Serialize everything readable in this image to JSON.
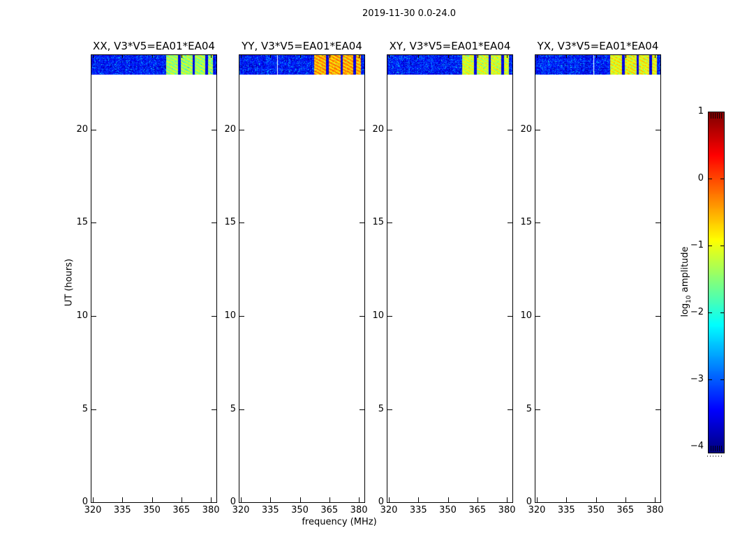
{
  "figure": {
    "title": "2019-11-30 0.0-24.0",
    "xlabel": "frequency (MHz)",
    "ylabel": "UT (hours)"
  },
  "chart_data": {
    "type": "heatmap",
    "title": "2019-11-30 0.0-24.0",
    "xlabel": "frequency (MHz)",
    "ylabel": "UT (hours)",
    "xlim": [
      319.3,
      382.8
    ],
    "ylim": [
      0,
      24
    ],
    "x_ticks": [
      320,
      335,
      350,
      365,
      380
    ],
    "x_tick_labels": [
      "320",
      "335",
      "350",
      "365",
      "380"
    ],
    "y_ticks": [
      0,
      5,
      10,
      15,
      20
    ],
    "y_tick_labels": [
      "0",
      "5",
      "10",
      "15",
      "20"
    ],
    "grid": false,
    "colormap": "jet",
    "legend_position": "right-colorbar",
    "data_band_ut_hours": [
      23,
      24
    ],
    "noise_floor_log10_amplitude": -3.3,
    "rfi_bands_mhz": [
      [
        357.0,
        363.0
      ],
      [
        364.5,
        370.5
      ],
      [
        371.5,
        376.8
      ],
      [
        378.2,
        381.0
      ]
    ],
    "panels": [
      {
        "title": "XX, V3*V5=EA01*EA04",
        "polarization": "XX",
        "baseline": "V3*V5=EA01*EA04",
        "rfi_level_log10": -1.3,
        "missing_channel_mhz": null
      },
      {
        "title": "YY, V3*V5=EA01*EA04",
        "polarization": "YY",
        "baseline": "V3*V5=EA01*EA04",
        "rfi_level_log10": -0.45,
        "missing_channel_mhz": 338.4
      },
      {
        "title": "XY, V3*V5=EA01*EA04",
        "polarization": "XY",
        "baseline": "V3*V5=EA01*EA04",
        "rfi_level_log10": -1.05,
        "missing_channel_mhz": null
      },
      {
        "title": "YX, V3*V5=EA01*EA04",
        "polarization": "YX",
        "baseline": "V3*V5=EA01*EA04",
        "rfi_level_log10": -0.9,
        "missing_channel_mhz": 348.9
      }
    ],
    "colorbar": {
      "label": "log10 amplitude",
      "label_prefix": "log",
      "label_sub": "10",
      "label_suffix": " amplitude",
      "vmin": -4,
      "vmax": 1,
      "ticks": [
        1,
        0,
        -1,
        -2,
        -3,
        -4
      ],
      "tick_labels": [
        "1",
        "0",
        "−1",
        "−2",
        "−3",
        "−4"
      ]
    }
  },
  "colors": {
    "background": "#ffffff",
    "axes": "#000000",
    "text": "#000000",
    "colormap_top": "#800000",
    "colormap_bottom": "#000080"
  }
}
